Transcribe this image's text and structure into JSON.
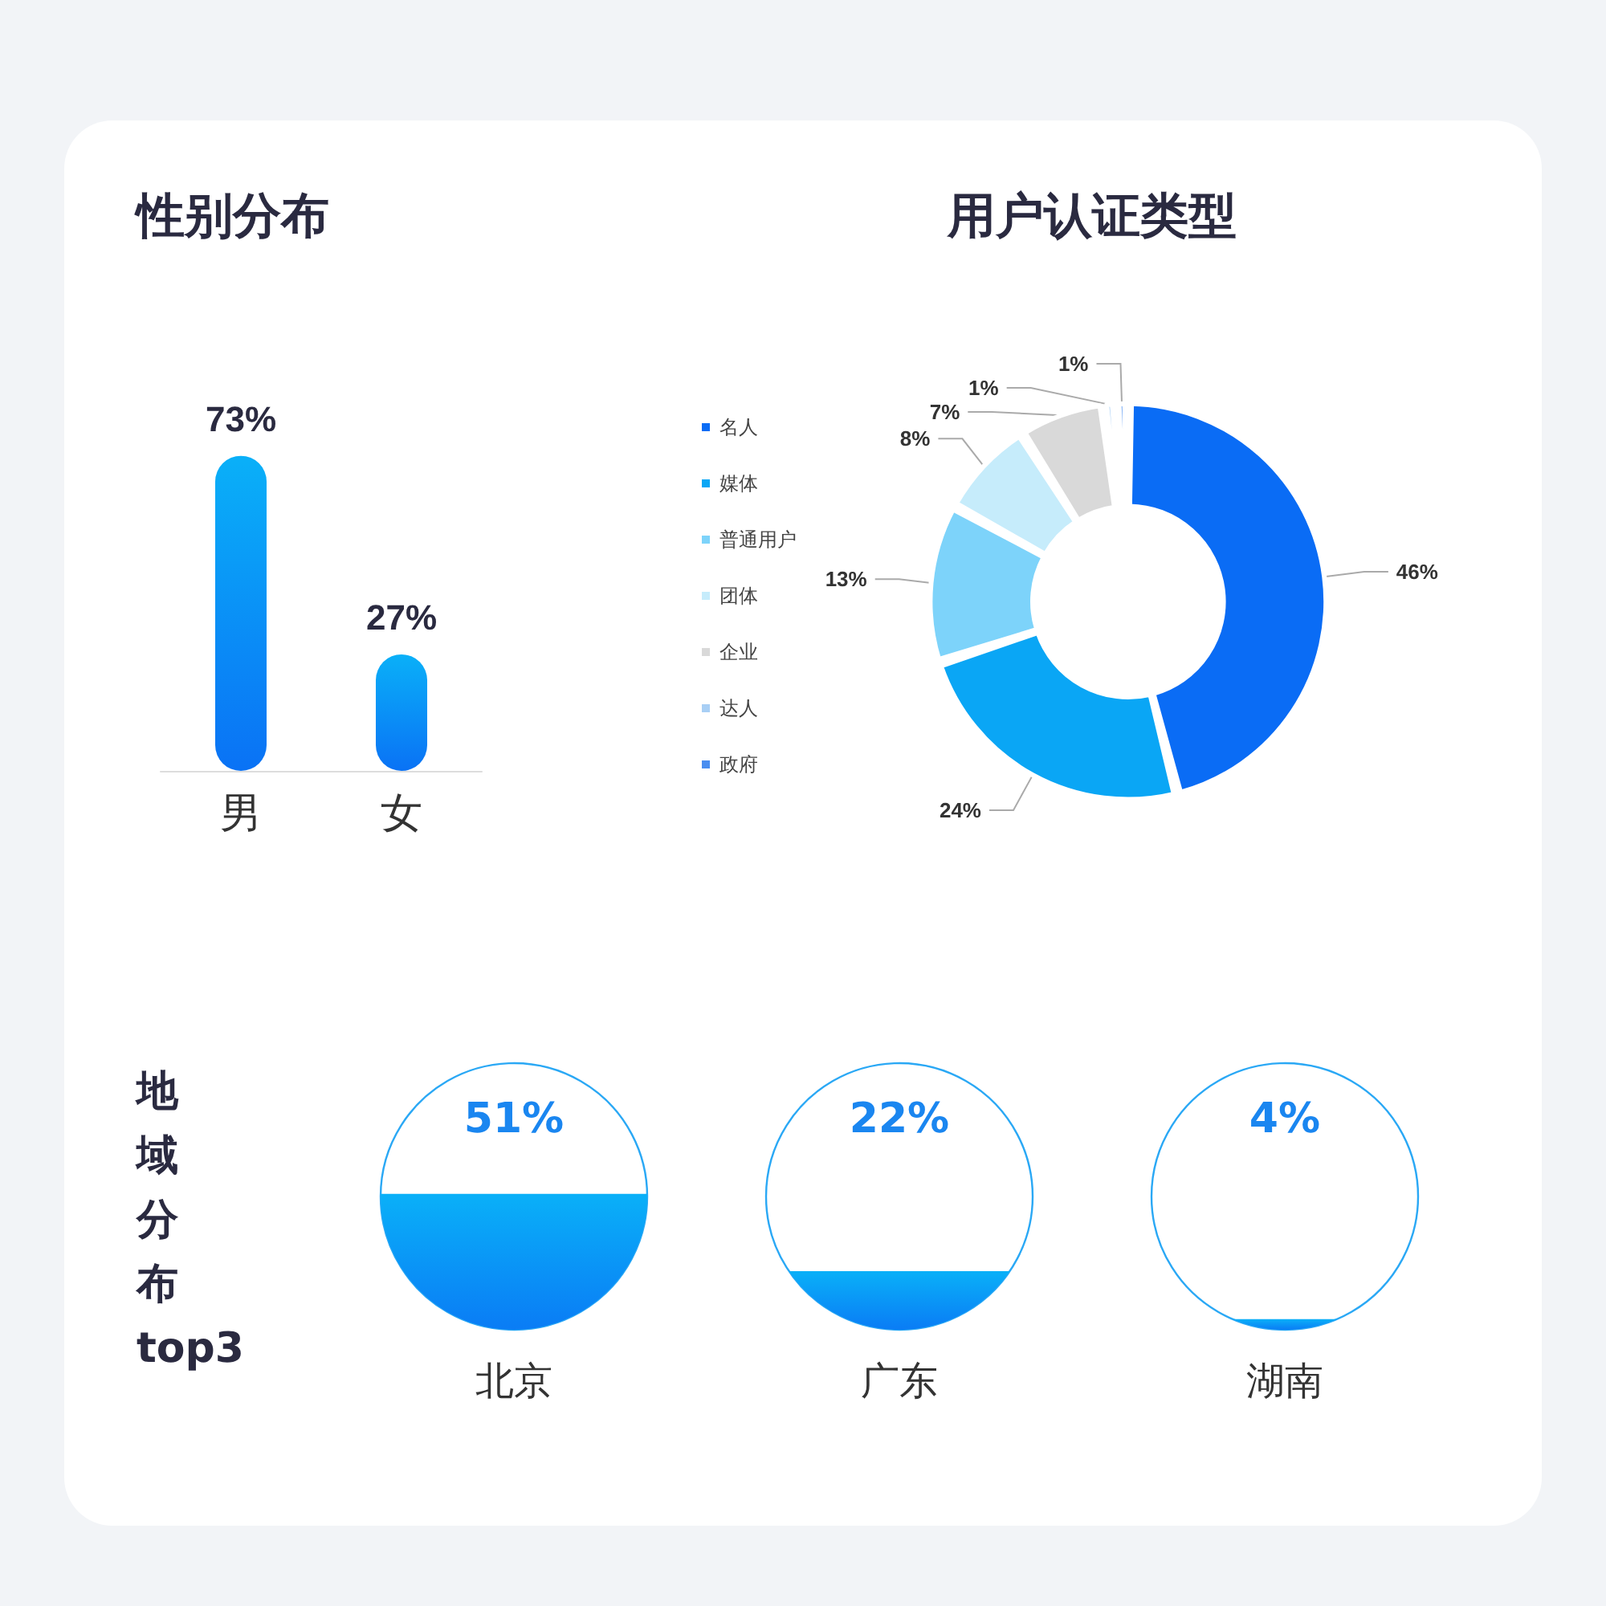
{
  "chart_data": [
    {
      "type": "bar",
      "title": "性别分布",
      "categories": [
        "男",
        "女"
      ],
      "values": [
        73,
        27
      ],
      "value_labels": [
        "73%",
        "27%"
      ],
      "color": "#0a72f5"
    },
    {
      "type": "donut",
      "title": "用户认证类型",
      "categories": [
        "名人",
        "媒体",
        "普通用户",
        "团体",
        "企业",
        "达人",
        "政府"
      ],
      "values": [
        46,
        24,
        13,
        8,
        7,
        1,
        1
      ],
      "value_labels": [
        "46%",
        "24%",
        "13%",
        "8%",
        "7%",
        "1%",
        "1%"
      ],
      "colors": [
        "#0a6cf5",
        "#0aa6f5",
        "#7dd3fa",
        "#c6ecfb",
        "#d9d9d9",
        "#a8cff5",
        "#4a8ef0"
      ],
      "legend": "left"
    },
    {
      "type": "other",
      "title": "地域分布top3",
      "categories": [
        "北京",
        "广东",
        "湖南"
      ],
      "values": [
        51,
        22,
        4
      ],
      "value_labels": [
        "51%",
        "22%",
        "4%"
      ],
      "color": "#0a7cf5"
    }
  ]
}
